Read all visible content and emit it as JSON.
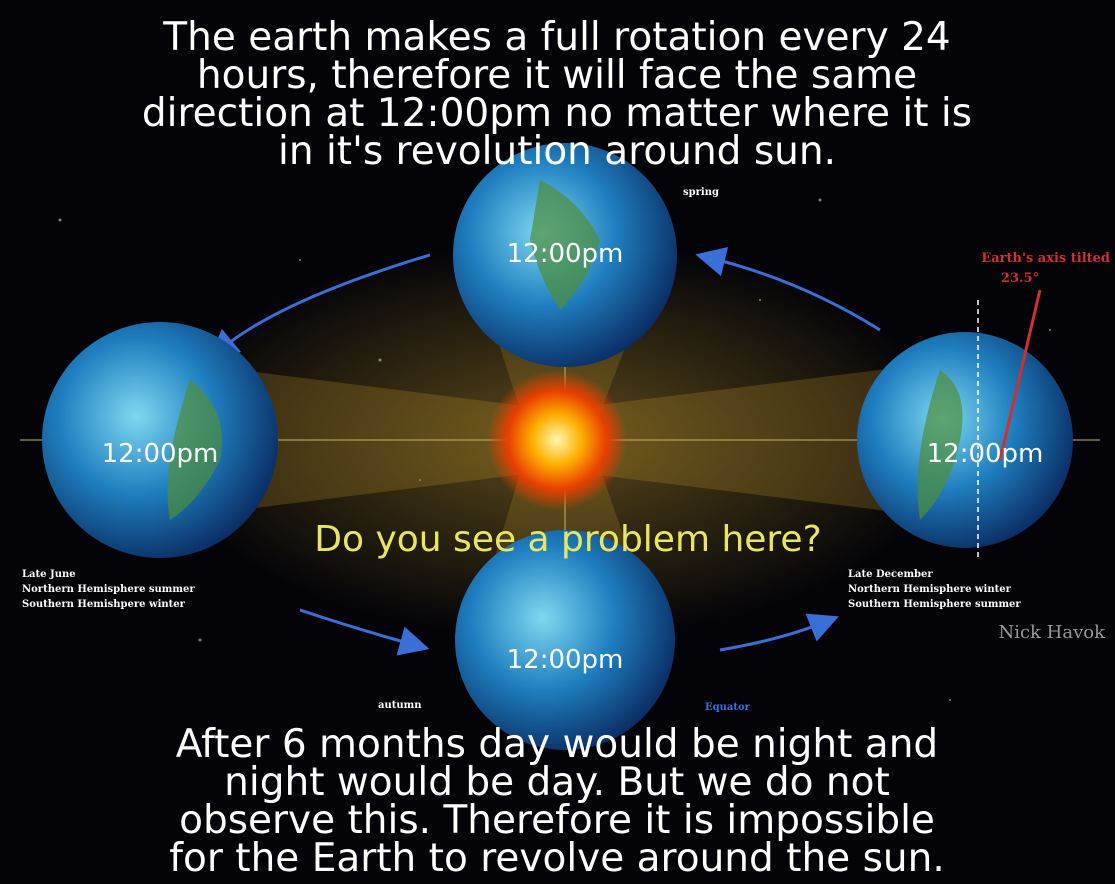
{
  "top_text": [
    "The earth makes a full rotation every 24",
    "hours, therefore it will face the same",
    "direction at 12:00pm no matter where it is",
    "in it's revolution around sun."
  ],
  "globes": [
    {
      "time": "12:00pm"
    },
    {
      "time": "12:00pm"
    },
    {
      "time": "12:00pm"
    },
    {
      "time": "12:00pm"
    }
  ],
  "captions": {
    "spring": "spring",
    "autumn": "autumn",
    "equator": "Equator",
    "axis_tilt": "Earth's axis tilted",
    "axis_angle": "23.5°",
    "watermark": "Nick Havok"
  },
  "question": "Do you see a problem here?",
  "left_note": [
    "Late June",
    "Northern Hemisphere summer",
    "Southern Hemishpere winter"
  ],
  "right_note": [
    "Late December",
    "Northern Hemisphere winter",
    "Southern Hemisphere summer"
  ],
  "bottom_text": [
    "After 6 months day would be night and",
    "night would be day. But we do not",
    "observe this. Therefore it is impossible",
    "for the Earth to revolve around the sun."
  ]
}
